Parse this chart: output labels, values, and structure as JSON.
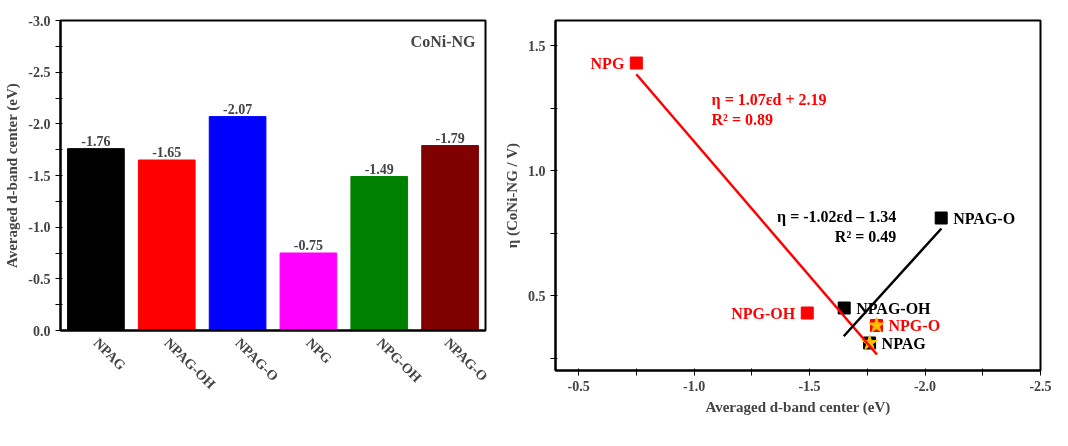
{
  "chart_data": [
    {
      "type": "bar",
      "ylabel": "Averaged d-band center (eV)",
      "annotations": [
        "CoNi-NG"
      ],
      "categories": [
        "NPAG",
        "NPAG-OH",
        "NPAG-O",
        "NPG",
        "NPG-OH",
        "NPAG-O"
      ],
      "values": [
        -1.76,
        -1.65,
        -2.07,
        -0.75,
        -1.49,
        -1.79
      ],
      "colors": [
        "#000000",
        "#ff0000",
        "#0000ff",
        "#ff00ff",
        "#008000",
        "#800000"
      ],
      "data_labels": true,
      "ylim": [
        0,
        -3.0
      ],
      "yticks": [
        {
          "value": 0,
          "label": "0.0"
        },
        {
          "value": -0.25,
          "label": null
        },
        {
          "value": -0.5,
          "label": "-0.5"
        },
        {
          "value": -0.75,
          "label": null
        },
        {
          "value": -1.0,
          "label": "-1.0"
        },
        {
          "value": -1.25,
          "label": null
        },
        {
          "value": -1.5,
          "label": "-1.5"
        },
        {
          "value": -1.75,
          "label": null
        },
        {
          "value": -2.0,
          "label": "-2.0"
        },
        {
          "value": -2.25,
          "label": null
        },
        {
          "value": -2.5,
          "label": "-2.5"
        },
        {
          "value": -2.75,
          "label": null
        },
        {
          "value": -3.0,
          "label": "-3.0"
        }
      ],
      "grid": false
    },
    {
      "type": "scatter",
      "xlabel": "Averaged d-band center (eV)",
      "ylabel": "η (CoNi-NG / V)",
      "series": [
        {
          "color": "#ff0000",
          "x": [
            -0.75,
            -1.49,
            -1.79
          ],
          "values": [
            1.43,
            0.43,
            0.38
          ],
          "marker": "square"
        },
        {
          "color": "#000000",
          "x": [
            -1.76,
            -1.65,
            -2.07
          ],
          "values": [
            0.31,
            0.45,
            0.81
          ],
          "marker": "square"
        },
        {
          "color": "#ffc000",
          "x": [
            -1.79,
            -1.76
          ],
          "values": [
            0.38,
            0.31
          ],
          "marker": "star"
        },
        {
          "type": "line",
          "color": "#ff0000",
          "x": [
            -0.75,
            -1.792
          ],
          "values": [
            1.385,
            0.264
          ],
          "marker": "none"
        },
        {
          "type": "line",
          "color": "#000000",
          "x": [
            -1.648,
            -2.071
          ],
          "values": [
            0.337,
            0.768
          ],
          "marker": "none"
        }
      ],
      "annotations": [
        {
          "text": "NPG",
          "x": -0.75,
          "y": 1.43
        },
        {
          "text": "NPG-OH",
          "x": -1.49,
          "y": 0.43
        },
        {
          "text": "NPG-O",
          "x": -1.79,
          "y": 0.38
        },
        {
          "text": "NPAG",
          "x": -1.76,
          "y": 0.31
        },
        {
          "text": "NPAG-OH",
          "x": -1.65,
          "y": 0.45
        },
        {
          "text": "NPAG-O",
          "x": -2.07,
          "y": 0.81
        },
        {
          "text": "η = 1.07εd + 2.19\nR² = 0.89",
          "x": -1.0,
          "y": 1.116
        },
        {
          "text": "η = -1.02εd – 1.34\nR² = 0.49",
          "x": -1.95,
          "y": 0.645
        }
      ],
      "xlim": [
        -0.4,
        -2.5
      ],
      "ylim": [
        0.2,
        1.6
      ],
      "xticks": [
        {
          "value": -0.5,
          "label": "-0.5"
        },
        {
          "value": -0.75,
          "label": null
        },
        {
          "value": -1.0,
          "label": "-1.0"
        },
        {
          "value": -1.25,
          "label": null
        },
        {
          "value": -1.5,
          "label": "-1.5"
        },
        {
          "value": -1.75,
          "label": null
        },
        {
          "value": -2.0,
          "label": "-2.0"
        },
        {
          "value": -2.25,
          "label": null
        },
        {
          "value": -2.5,
          "label": "-2.5"
        }
      ],
      "yticks": [
        {
          "value": 0.25,
          "label": null
        },
        {
          "value": 0.5,
          "label": "0.5"
        },
        {
          "value": 0.75,
          "label": null
        },
        {
          "value": 1.0,
          "label": "1.0"
        },
        {
          "value": 1.25,
          "label": null
        },
        {
          "value": 1.5,
          "label": "1.5"
        }
      ],
      "grid": false
    }
  ]
}
